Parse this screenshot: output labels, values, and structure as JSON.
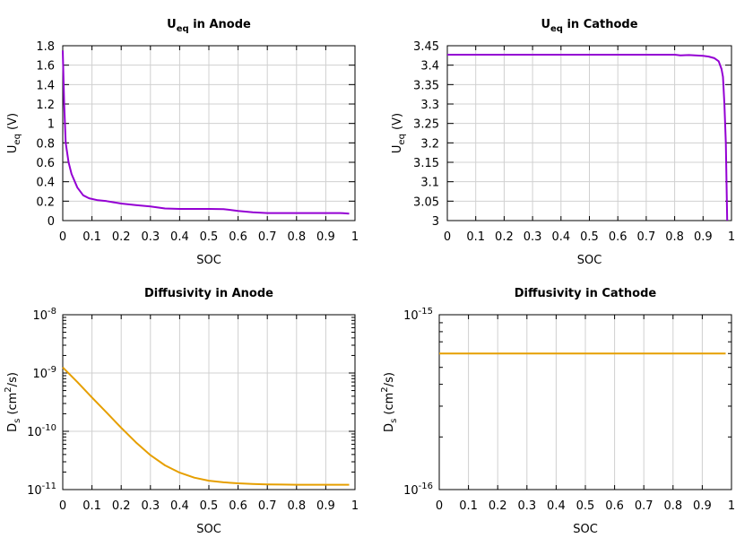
{
  "chart_data": [
    {
      "type": "line",
      "title_main": "U",
      "title_sub": "eq",
      "title_rest": " in Anode",
      "xlabel": "SOC",
      "ylabel_main": "U",
      "ylabel_sub": "eq",
      "ylabel_rest": " (V)",
      "xlim": [
        0,
        1
      ],
      "ylim": [
        0,
        1.8
      ],
      "yscale": "linear",
      "xticks": [
        "0",
        "0.1",
        "0.2",
        "0.3",
        "0.4",
        "0.5",
        "0.6",
        "0.7",
        "0.8",
        "0.9",
        "1"
      ],
      "yticks": [
        "0",
        "0.2",
        "0.4",
        "0.6",
        "0.8",
        "1",
        "1.2",
        "1.4",
        "1.6",
        "1.8"
      ],
      "grid": true,
      "color": "#9400d3",
      "x": [
        0.0,
        0.005,
        0.01,
        0.02,
        0.03,
        0.05,
        0.07,
        0.09,
        0.12,
        0.15,
        0.2,
        0.25,
        0.3,
        0.35,
        0.4,
        0.45,
        0.5,
        0.55,
        0.6,
        0.65,
        0.7,
        0.75,
        0.8,
        0.85,
        0.9,
        0.95,
        0.98
      ],
      "y": [
        1.75,
        1.2,
        0.8,
        0.6,
        0.48,
        0.34,
        0.26,
        0.23,
        0.21,
        0.2,
        0.175,
        0.16,
        0.145,
        0.125,
        0.12,
        0.12,
        0.12,
        0.118,
        0.1,
        0.085,
        0.078,
        0.078,
        0.078,
        0.078,
        0.078,
        0.078,
        0.072
      ]
    },
    {
      "type": "line",
      "title_main": "U",
      "title_sub": "eq",
      "title_rest": " in Cathode",
      "xlabel": "SOC",
      "ylabel_main": "U",
      "ylabel_sub": "eq",
      "ylabel_rest": " (V)",
      "xlim": [
        0,
        1
      ],
      "ylim": [
        3,
        3.45
      ],
      "yscale": "linear",
      "xticks": [
        "0",
        "0.1",
        "0.2",
        "0.3",
        "0.4",
        "0.5",
        "0.6",
        "0.7",
        "0.8",
        "0.9",
        "1"
      ],
      "yticks": [
        "3",
        "3.05",
        "3.1",
        "3.15",
        "3.2",
        "3.25",
        "3.3",
        "3.35",
        "3.4",
        "3.45"
      ],
      "grid": true,
      "color": "#9400d3",
      "x": [
        0.0,
        0.1,
        0.2,
        0.3,
        0.4,
        0.5,
        0.6,
        0.7,
        0.8,
        0.82,
        0.85,
        0.9,
        0.92,
        0.94,
        0.955,
        0.965,
        0.97,
        0.975,
        0.98,
        0.985
      ],
      "y": [
        3.427,
        3.427,
        3.427,
        3.427,
        3.427,
        3.427,
        3.427,
        3.427,
        3.427,
        3.425,
        3.426,
        3.424,
        3.422,
        3.418,
        3.41,
        3.39,
        3.37,
        3.3,
        3.2,
        3.0
      ]
    },
    {
      "type": "line",
      "title": "Diffusivity in Anode",
      "xlabel": "SOC",
      "ylabel_main": "D",
      "ylabel_sub": "s",
      "ylabel_rest": " (cm",
      "ylabel_sup": "2",
      "ylabel_tail": "/s)",
      "xlim": [
        0,
        1
      ],
      "ylim": [
        1e-11,
        1e-08
      ],
      "yscale": "log",
      "xticks": [
        "0",
        "0.1",
        "0.2",
        "0.3",
        "0.4",
        "0.5",
        "0.6",
        "0.7",
        "0.8",
        "0.9",
        "1"
      ],
      "yticks_base": [
        "10",
        "10",
        "10",
        "10"
      ],
      "yticks_exp": [
        "-11",
        "-10",
        "-9",
        "-8"
      ],
      "ytick_values": [
        1e-11,
        1e-10,
        1e-09,
        1e-08
      ],
      "grid": true,
      "color": "#e69f00",
      "x": [
        0.0,
        0.05,
        0.1,
        0.15,
        0.2,
        0.25,
        0.3,
        0.35,
        0.4,
        0.45,
        0.5,
        0.55,
        0.6,
        0.65,
        0.7,
        0.75,
        0.8,
        0.85,
        0.9,
        0.95,
        0.98
      ],
      "y": [
        1.25e-09,
        7e-10,
        3.8e-10,
        2.1e-10,
        1.15e-10,
        6.5e-11,
        3.9e-11,
        2.6e-11,
        1.95e-11,
        1.6e-11,
        1.42e-11,
        1.33e-11,
        1.28e-11,
        1.25e-11,
        1.23e-11,
        1.22e-11,
        1.21e-11,
        1.21e-11,
        1.21e-11,
        1.21e-11,
        1.21e-11
      ]
    },
    {
      "type": "line",
      "title": "Diffusivity in Cathode",
      "xlabel": "SOC",
      "ylabel_main": "D",
      "ylabel_sub": "s",
      "ylabel_rest": " (cm",
      "ylabel_sup": "2",
      "ylabel_tail": "/s)",
      "xlim": [
        0,
        1
      ],
      "ylim": [
        1e-16,
        1e-15
      ],
      "yscale": "log",
      "xticks": [
        "0",
        "0.1",
        "0.2",
        "0.3",
        "0.4",
        "0.5",
        "0.6",
        "0.7",
        "0.8",
        "0.9",
        "1"
      ],
      "yticks_base": [
        "10",
        "10"
      ],
      "yticks_exp": [
        "-16",
        "-15"
      ],
      "ytick_values": [
        1e-16,
        1e-15
      ],
      "grid": true,
      "color": "#e69f00",
      "x": [
        0.0,
        0.98
      ],
      "y": [
        6e-16,
        6e-16
      ]
    }
  ]
}
